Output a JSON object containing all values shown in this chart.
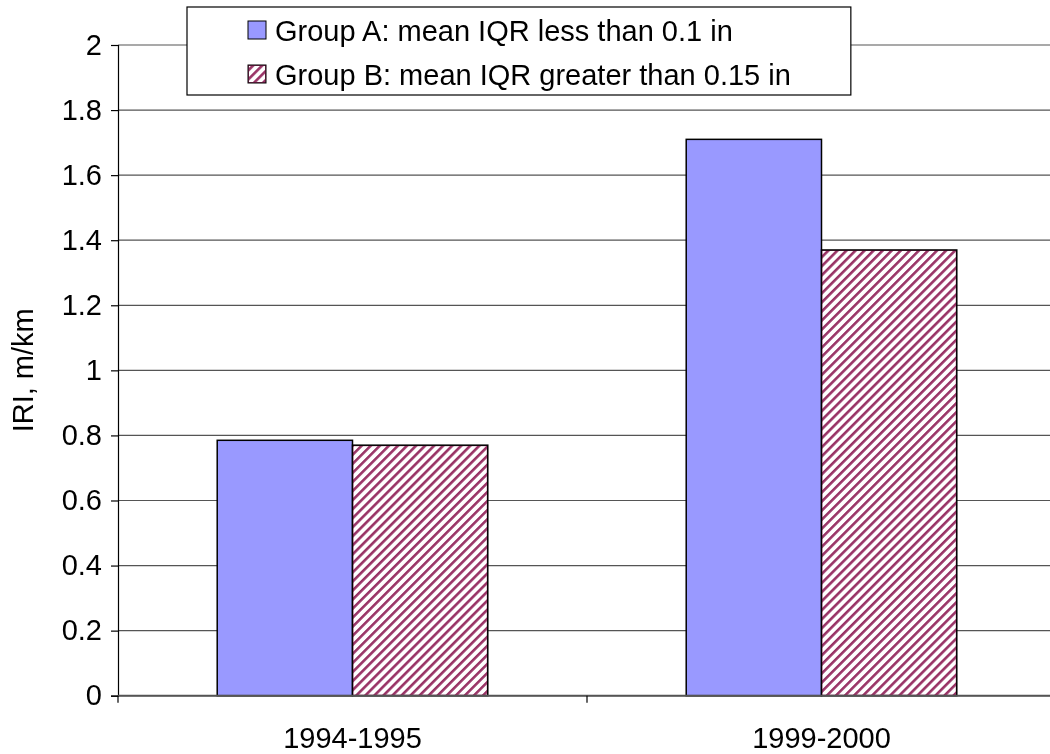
{
  "chart_data": {
    "type": "bar",
    "ylabel": "IRI, m/km",
    "categories": [
      "1994-1995",
      "1999-2000"
    ],
    "series": [
      {
        "name": "Group A: mean IQR less than 0.1 in",
        "color": "#9999ff",
        "values": [
          0.785,
          1.71
        ]
      },
      {
        "name": "Group B: mean IQR greater than 0.15 in",
        "color": "#993366",
        "values": [
          0.77,
          1.37
        ]
      }
    ],
    "ylim": [
      0,
      2
    ],
    "yticks": [
      0,
      0.2,
      0.4,
      0.6,
      0.8,
      1,
      1.2,
      1.4,
      1.6,
      1.8,
      2
    ],
    "grid": "y",
    "legend": "top"
  }
}
